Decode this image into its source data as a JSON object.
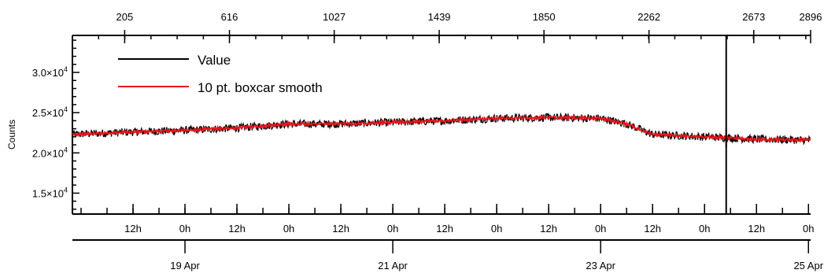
{
  "chart_data": {
    "type": "line",
    "title": "",
    "ylabel": "Counts",
    "ylim": [
      12500,
      34500
    ],
    "y_ticks": [
      {
        "value": 15000,
        "mantissa": "1.5",
        "exp": "4"
      },
      {
        "value": 20000,
        "mantissa": "2.0",
        "exp": "4"
      },
      {
        "value": 25000,
        "mantissa": "2.5",
        "exp": "4"
      },
      {
        "value": 30000,
        "mantissa": "3.0",
        "exp": "4"
      }
    ],
    "top_axis": {
      "range": [
        0,
        2896
      ],
      "tick_labels": [
        "205",
        "616",
        "1027",
        "1439",
        "1850",
        "2262",
        "2673",
        "2896"
      ],
      "tick_values": [
        205,
        616,
        1027,
        1439,
        1850,
        2262,
        2673,
        2896
      ]
    },
    "time_axis": {
      "range": [
        "2024-04-17T22:00",
        "2024-04-25T00:30"
      ],
      "hour_labels": [
        {
          "t": "2024-04-18T12:00",
          "label": "12h"
        },
        {
          "t": "2024-04-19T00:00",
          "label": "0h"
        },
        {
          "t": "2024-04-19T12:00",
          "label": "12h"
        },
        {
          "t": "2024-04-20T00:00",
          "label": "0h"
        },
        {
          "t": "2024-04-20T12:00",
          "label": "12h"
        },
        {
          "t": "2024-04-21T00:00",
          "label": "0h"
        },
        {
          "t": "2024-04-21T12:00",
          "label": "12h"
        },
        {
          "t": "2024-04-22T00:00",
          "label": "0h"
        },
        {
          "t": "2024-04-22T12:00",
          "label": "12h"
        },
        {
          "t": "2024-04-23T00:00",
          "label": "0h"
        },
        {
          "t": "2024-04-23T12:00",
          "label": "12h"
        },
        {
          "t": "2024-04-24T00:00",
          "label": "0h"
        },
        {
          "t": "2024-04-24T12:00",
          "label": "12h"
        },
        {
          "t": "2024-04-25T00:00",
          "label": "0h"
        }
      ],
      "date_labels": [
        {
          "t": "2024-04-19T00:00",
          "label": "19 Apr"
        },
        {
          "t": "2024-04-21T00:00",
          "label": "21 Apr"
        },
        {
          "t": "2024-04-23T00:00",
          "label": "23 Apr"
        },
        {
          "t": "2024-04-25T00:00",
          "label": "25 Apr"
        }
      ]
    },
    "cursor_x": "2024-04-24T05:00",
    "series": [
      {
        "name": "Value",
        "color": "#000000",
        "noise": 500,
        "points": [
          [
            "2024-04-17T22:00",
            22300
          ],
          [
            "2024-04-18T12:00",
            22600
          ],
          [
            "2024-04-19T00:00",
            22800
          ],
          [
            "2024-04-19T12:00",
            23100
          ],
          [
            "2024-04-20T00:00",
            23600
          ],
          [
            "2024-04-20T12:00",
            23600
          ],
          [
            "2024-04-21T00:00",
            23800
          ],
          [
            "2024-04-21T12:00",
            24000
          ],
          [
            "2024-04-22T00:00",
            24300
          ],
          [
            "2024-04-22T12:00",
            24400
          ],
          [
            "2024-04-23T00:00",
            24300
          ],
          [
            "2024-04-23T06:00",
            23600
          ],
          [
            "2024-04-23T12:00",
            22300
          ],
          [
            "2024-04-24T00:00",
            22000
          ],
          [
            "2024-04-24T12:00",
            21700
          ],
          [
            "2024-04-25T00:30",
            21600
          ]
        ]
      },
      {
        "name": "10 pt. boxcar smooth",
        "color": "#e8141b",
        "noise": 160,
        "points": [
          [
            "2024-04-17T22:00",
            22300
          ],
          [
            "2024-04-18T12:00",
            22600
          ],
          [
            "2024-04-19T00:00",
            22800
          ],
          [
            "2024-04-19T12:00",
            23100
          ],
          [
            "2024-04-20T00:00",
            23600
          ],
          [
            "2024-04-20T12:00",
            23600
          ],
          [
            "2024-04-21T00:00",
            23800
          ],
          [
            "2024-04-21T12:00",
            24000
          ],
          [
            "2024-04-22T00:00",
            24300
          ],
          [
            "2024-04-22T12:00",
            24400
          ],
          [
            "2024-04-23T00:00",
            24300
          ],
          [
            "2024-04-23T06:00",
            23600
          ],
          [
            "2024-04-23T12:00",
            22300
          ],
          [
            "2024-04-24T00:00",
            22000
          ],
          [
            "2024-04-24T12:00",
            21700
          ],
          [
            "2024-04-25T00:30",
            21600
          ]
        ]
      }
    ],
    "legend_position": "top-left"
  }
}
